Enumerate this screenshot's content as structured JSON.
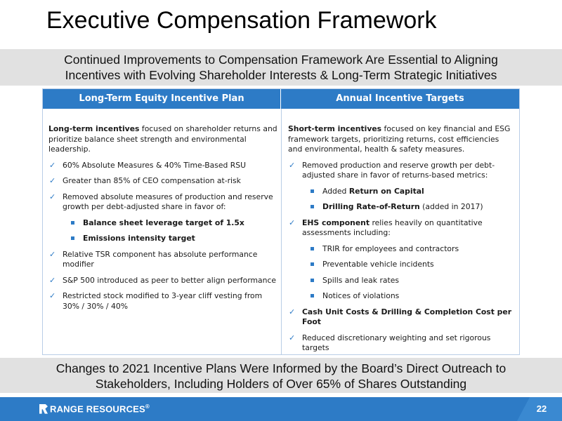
{
  "title": "Executive Compensation Framework",
  "top_banner": {
    "line1": "Continued Improvements to Compensation Framework Are Essential to Aligning",
    "line2": "Incentives with Evolving Shareholder Interests & Long-Term Strategic Initiatives"
  },
  "table": {
    "left_header": "Long-Term Equity Incentive Plan",
    "right_header": "Annual Incentive Targets",
    "left": {
      "intro_bold": "Long-term incentives",
      "intro_rest": " focused on shareholder returns and prioritize balance sheet strength and environmental leadership.",
      "items": [
        "60% Absolute Measures & 40% Time-Based RSU",
        "Greater than 85% of CEO compensation at-risk",
        "Removed absolute measures of production and reserve growth per debt-adjusted share in favor of:"
      ],
      "subitems": [
        "Balance sheet leverage target of 1.5x",
        "Emissions intensity target"
      ],
      "items2": [
        "Relative TSR component has absolute performance modifier",
        "S&P 500 introduced as peer to better align performance",
        "Restricted stock modified to 3-year cliff vesting from 30% / 30% / 40%"
      ]
    },
    "right": {
      "intro_bold": "Short-term incentives",
      "intro_rest": " focused on key financial and ESG framework targets, prioritizing returns, cost efficiencies and environmental, health & safety measures.",
      "item1": "Removed production and reserve growth per debt-adjusted share in favor of returns-based metrics:",
      "sub1": [
        {
          "pre": "Added ",
          "bold": "Return on Capital",
          "post": ""
        },
        {
          "pre": "",
          "bold": "Drilling Rate-of-Return",
          "post": " (added in 2017)"
        }
      ],
      "item2_bold": "EHS component",
      "item2_rest": " relies heavily on quantitative assessments including:",
      "sub2": [
        "TRIR for employees and contractors",
        "Preventable vehicle incidents",
        "Spills and leak rates",
        "Notices of violations"
      ],
      "item3": "Cash Unit Costs & Drilling & Completion Cost per Foot",
      "item4": "Reduced discretionary weighting and set rigorous targets"
    }
  },
  "bottom_banner": {
    "line1": "Changes to 2021 Incentive Plans Were Informed by the Board’s Direct Outreach to",
    "line2": "Stakeholders, Including Holders of Over 65% of Shares Outstanding"
  },
  "footer": {
    "logo_text": "RANGE RESOURCES",
    "logo_reg": "®",
    "page_number": "22"
  },
  "colors": {
    "accent_blue": "#2d7bc6",
    "band_gray": "#e1e1e1"
  },
  "icons": {
    "bullet_check": "checkmark-icon",
    "bullet_square": "square-bullet-icon"
  }
}
